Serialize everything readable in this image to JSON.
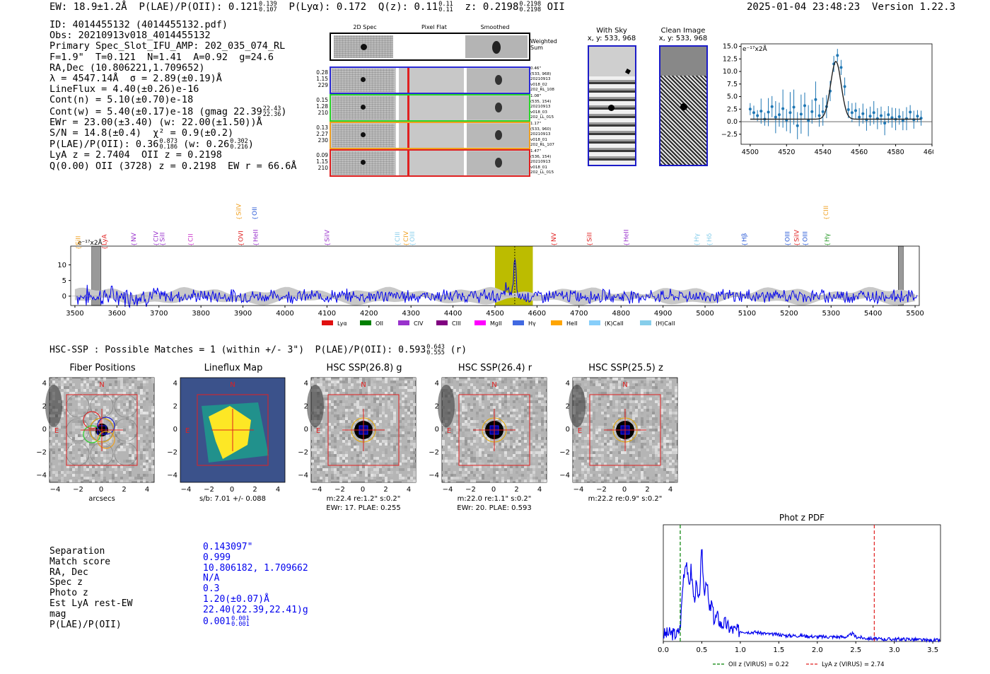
{
  "header": {
    "ew": "EW: 18.9±1.2Å",
    "plae_label": "P(LAE)/P(OII): 0.121",
    "plae_hi": "0.139",
    "plae_lo": "0.107",
    "plya": "P(Lyα): 0.172",
    "qz": "Q(z): 0.11",
    "qz_hi": "0.11",
    "qz_lo": "0.11",
    "z": "z: 0.2198",
    "z_hi": "0.2198",
    "z_lo": "0.2198",
    "z_line": "OII",
    "datetime": "2025-01-04 23:48:23",
    "version": "Version 1.22.3"
  },
  "info": {
    "id": "ID: 4014455132 (4014455132.pdf)",
    "obs": "Obs: 20210913v018_4014455132",
    "primary": "Primary Spec_Slot_IFU_AMP: 202_035_074_RL",
    "fit": "F=1.9\"  T=0.121  N=1.41  A=0.92  g=24.6",
    "radec": "RA,Dec (10.806221,1.709652)",
    "lambda": "λ = 4547.14Å  σ = 2.89(±0.19)Å",
    "lineflux": "LineFlux = 4.40(±0.26)e-16",
    "contn": "Cont(n) = 5.10(±0.70)e-18",
    "contw": "Cont(w) = 5.40(±0.17)e-18 (gmag 22.39",
    "contw_hi": "22.43",
    "contw_lo": "22.36",
    "ewr": "EWr = 23.00(±3.40) (w: 22.00(±1.50))Å",
    "sn": "S/N = 14.8(±0.4)  χ² = 0.9(±0.2)",
    "plae2": "P(LAE)/P(OII): 0.36",
    "plae2_hi": "0.873",
    "plae2_lo": "0.186",
    "plae2_w": "(w: 0.26",
    "plae2_w_hi": "0.302",
    "plae2_w_lo": "0.216",
    "lyaz": "LyA z = 2.7404  OII z = 0.2198",
    "q": "Q(0.00) OII (3728) z = 0.2198  EW r = 66.6Å"
  },
  "cutouts": {
    "col_2d": "2D Spec",
    "col_flat": "Pixel Flat",
    "col_smooth": "Smoothed",
    "weighted": "Weighted Sum",
    "rows": [
      {
        "n1": "0.28",
        "n2": "1.15",
        "n3": "229",
        "d": "0.46\"",
        "xy": "(533, 968)",
        "date": "20210913",
        "obs": "v018_02",
        "amp": "202_RL_108",
        "color": "#2a2ad6"
      },
      {
        "n1": "0.15",
        "n2": "1.28",
        "n3": "210",
        "d": "1.08\"",
        "xy": "(535, 154)",
        "date": "20210913",
        "obs": "v018_03",
        "amp": "202_LL_015",
        "color": "#2bd62b"
      },
      {
        "n1": "0.13",
        "n2": "2.27",
        "n3": "230",
        "d": "1.17\"",
        "xy": "(533, 960)",
        "date": "20210913",
        "obs": "v018_01",
        "amp": "202_RL_107",
        "color": "#f0a020"
      },
      {
        "n1": "0.09",
        "n2": "1.15",
        "n3": "210",
        "d": "1.47\"",
        "xy": "(536, 154)",
        "date": "20210913",
        "obs": "v018_01",
        "amp": "202_LL_015",
        "color": "#e02020"
      }
    ],
    "withsky_title": "With Sky",
    "withsky_xy": "x, y: 533, 968",
    "clean_title": "Clean Image",
    "clean_xy": "x, y: 533, 968"
  },
  "chart_data": [
    {
      "type": "line",
      "name": "line-fit",
      "ylabel_unit": "e⁻¹⁷x2Å",
      "xlim": [
        4495,
        4600
      ],
      "ylim": [
        -4.5,
        15.5
      ],
      "xticks": [
        4500,
        4520,
        4540,
        4560,
        4580,
        4600
      ],
      "yticks": [
        -2.5,
        0.0,
        2.5,
        5.0,
        7.5,
        10.0,
        12.5,
        15.0
      ],
      "ytick_labels": [
        "−2.5",
        "0.0",
        "2.5",
        "5.0",
        "7.5",
        "10.0",
        "12.5",
        "15.0"
      ],
      "fit": {
        "center": 4547.14,
        "sigma": 2.89,
        "amp": 11.5,
        "cont": 0.5
      },
      "points": {
        "x": [
          4500,
          4502,
          4504,
          4506,
          4508,
          4510,
          4512,
          4514,
          4516,
          4518,
          4520,
          4522,
          4524,
          4526,
          4528,
          4530,
          4532,
          4534,
          4536,
          4538,
          4540,
          4542,
          4544,
          4546,
          4548,
          4550,
          4552,
          4554,
          4556,
          4558,
          4560,
          4562,
          4564,
          4566,
          4568,
          4570,
          4572,
          4574,
          4576,
          4578,
          4580,
          4582,
          4584,
          4586,
          4588,
          4590,
          4592,
          4594
        ],
        "y": [
          2.5,
          1.8,
          1.2,
          2.1,
          0.5,
          1.9,
          3.0,
          0.9,
          1.4,
          2.6,
          0.3,
          1.8,
          2.9,
          -0.8,
          1.5,
          3.2,
          0.2,
          2.0,
          4.4,
          1.2,
          2.0,
          3.0,
          6.1,
          11.5,
          13.2,
          10.8,
          7.0,
          2.4,
          1.8,
          2.2,
          0.9,
          1.6,
          0.4,
          1.1,
          1.8,
          0.6,
          1.2,
          -0.3,
          1.4,
          0.8,
          0.5,
          1.0,
          0.2,
          0.6,
          1.9,
          0.4,
          1.1,
          0.7
        ],
        "err": [
          1.2,
          1.4,
          1.1,
          2.5,
          1.3,
          2.8,
          2.1,
          3.2,
          2.4,
          3.8,
          2.2,
          4.1,
          3.5,
          2.7,
          3.9,
          2.6,
          3.1,
          2.4,
          3.6,
          2.2,
          2.8,
          2.3,
          2.0,
          1.6,
          1.3,
          1.5,
          1.8,
          1.7,
          1.9,
          1.6,
          1.8,
          2.0,
          2.2,
          1.9,
          2.3,
          2.1,
          1.8,
          2.4,
          1.7,
          2.0,
          2.2,
          1.6,
          1.9,
          2.3,
          1.4,
          1.8,
          1.2,
          1.5
        ]
      }
    },
    {
      "type": "line",
      "name": "full-spectrum",
      "ylabel_unit": "e⁻¹⁷x2Å",
      "xlim": [
        3490,
        5510
      ],
      "ylim": [
        -3,
        16
      ],
      "xticks": [
        3500,
        3600,
        3700,
        3800,
        3900,
        4000,
        4100,
        4200,
        4300,
        4400,
        4500,
        4600,
        4700,
        4800,
        4900,
        5000,
        5100,
        5200,
        5300,
        5400,
        5500
      ],
      "yticks": [
        0,
        5,
        10
      ],
      "highlight": [
        4500,
        4590
      ],
      "marker": 4547,
      "grey_bands": [
        [
          3540,
          3562
        ],
        [
          5460,
          5472
        ]
      ],
      "line_labels": [
        {
          "label": "SiII",
          "x": 3508,
          "tier": 0,
          "color": "#f0a020"
        },
        {
          "label": "LyA",
          "x": 3570,
          "tier": 0,
          "color": "#e02020"
        },
        {
          "label": "NV",
          "x": 3640,
          "tier": 1,
          "color": "#9932cc"
        },
        {
          "label": "CIV",
          "x": 3693,
          "tier": 1,
          "color": "#9932cc"
        },
        {
          "label": "SiII",
          "x": 3708,
          "tier": 1,
          "color": "#9932cc"
        },
        {
          "label": "CII",
          "x": 3775,
          "tier": 1,
          "color": "#cc33cc"
        },
        {
          "label": "SiIV",
          "x": 3890,
          "tier": 3,
          "color": "#f0a020"
        },
        {
          "label": "OII",
          "x": 3928,
          "tier": 3,
          "color": "#2a5ad6"
        },
        {
          "label": "OVI",
          "x": 3895,
          "tier": 1,
          "color": "#e02020"
        },
        {
          "label": "HeII",
          "x": 3930,
          "tier": 1,
          "color": "#9932cc"
        },
        {
          "label": "SiIV",
          "x": 4100,
          "tier": 1,
          "color": "#9932cc"
        },
        {
          "label": "CIII",
          "x": 4268,
          "tier": 1,
          "color": "#87ceeb"
        },
        {
          "label": "CIV",
          "x": 4288,
          "tier": 1,
          "color": "#f0a020"
        },
        {
          "label": "OIII",
          "x": 4303,
          "tier": 1,
          "color": "#87ceeb"
        },
        {
          "label": "NV",
          "x": 4640,
          "tier": 1,
          "color": "#e02020"
        },
        {
          "label": "SiII",
          "x": 4725,
          "tier": 1,
          "color": "#e02020"
        },
        {
          "label": "HeII",
          "x": 4812,
          "tier": 1,
          "color": "#9932cc"
        },
        {
          "label": "Hγ",
          "x": 4980,
          "tier": 1,
          "color": "#87ceeb"
        },
        {
          "label": "Hδ",
          "x": 5010,
          "tier": 1,
          "color": "#87ceeb"
        },
        {
          "label": "Hβ",
          "x": 5093,
          "tier": 1,
          "color": "#2a5ad6"
        },
        {
          "label": "OIII",
          "x": 5196,
          "tier": 1,
          "color": "#2a5ad6"
        },
        {
          "label": "SiIV",
          "x": 5218,
          "tier": 1,
          "color": "#e02020"
        },
        {
          "label": "OIII",
          "x": 5238,
          "tier": 1,
          "color": "#2a5ad6"
        },
        {
          "label": "CIII",
          "x": 5288,
          "tier": 3,
          "color": "#f0a020"
        },
        {
          "label": "Hγ",
          "x": 5290,
          "tier": 1,
          "color": "#2a9a2a"
        }
      ],
      "legend": [
        {
          "label": "Lyα",
          "color": "#e01010"
        },
        {
          "label": "OII",
          "color": "#008000"
        },
        {
          "label": "CIV",
          "color": "#9932cc"
        },
        {
          "label": "CIII",
          "color": "#800080"
        },
        {
          "label": "MgII",
          "color": "#ff00ff"
        },
        {
          "label": "Hγ",
          "color": "#4169e1"
        },
        {
          "label": "HeII",
          "color": "#ffa500"
        },
        {
          "label": "(K)CaII",
          "color": "#87cefa"
        },
        {
          "label": "(H)CaII",
          "color": "#87ceeb"
        }
      ]
    },
    {
      "type": "line",
      "name": "photz-pdf",
      "title": "Phot z PDF",
      "xlim": [
        0.0,
        3.6
      ],
      "ylim": [
        0,
        1.0
      ],
      "xticks": [
        0.0,
        0.5,
        1.0,
        1.5,
        2.0,
        2.5,
        3.0,
        3.5
      ],
      "xtick_labels": [
        "0.0",
        "0.5",
        "1.0",
        "1.5",
        "2.0",
        "2.5",
        "3.0",
        "3.5"
      ],
      "vlines": [
        {
          "x": 0.22,
          "color": "#008000",
          "label": "OII z (VIRUS) = 0.22"
        },
        {
          "x": 2.74,
          "color": "#e02020",
          "label": "LyA z (VIRUS) = 2.74"
        }
      ],
      "curve": {
        "x": [
          0.0,
          0.1,
          0.18,
          0.22,
          0.26,
          0.3,
          0.33,
          0.36,
          0.4,
          0.43,
          0.46,
          0.5,
          0.53,
          0.56,
          0.6,
          0.63,
          0.66,
          0.7,
          0.75,
          0.8,
          0.85,
          0.9,
          1.0,
          1.1,
          1.2,
          1.3,
          1.4,
          1.5,
          1.6,
          1.8,
          2.0,
          2.2,
          2.4,
          2.45,
          2.5,
          2.6,
          2.8,
          3.0,
          3.2,
          3.4,
          3.6
        ],
        "y": [
          0.06,
          0.07,
          0.06,
          0.12,
          0.55,
          0.72,
          0.45,
          0.62,
          0.35,
          0.5,
          0.3,
          0.78,
          0.42,
          0.55,
          0.25,
          0.33,
          0.18,
          0.22,
          0.14,
          0.16,
          0.12,
          0.1,
          0.09,
          0.08,
          0.08,
          0.07,
          0.06,
          0.06,
          0.05,
          0.05,
          0.04,
          0.04,
          0.04,
          0.07,
          0.04,
          0.03,
          0.02,
          0.02,
          0.02,
          0.01,
          0.01
        ]
      }
    }
  ],
  "hsc": {
    "summary": "HSC-SSP : Possible Matches = 1 (within +/- 3\")  P(LAE)/P(OII): 0.593",
    "summary_hi": "0.643",
    "summary_lo": "0.555",
    "summary_band": "(r)",
    "panels": [
      {
        "title": "Fiber Positions",
        "cap1": "arcsecs",
        "cap2": ""
      },
      {
        "title": "Lineflux Map",
        "cap1": "s/b: 7.01 +/- 0.088",
        "cap2": ""
      },
      {
        "title": "HSC SSP(26.8) g",
        "cap1": "m:22.4  re:1.2\"  s:0.2\"",
        "cap2": "EWr: 17. PLAE: 0.255"
      },
      {
        "title": "HSC SSP(26.4) r",
        "cap1": "m:22.0  re:1.1\"  s:0.2\"",
        "cap2": "EWr: 20. PLAE: 0.593"
      },
      {
        "title": "HSC SSP(25.5) z",
        "cap1": "m:22.2  re:0.9\"  s:0.2\"",
        "cap2": ""
      }
    ],
    "ticks": [
      "4",
      "2",
      "0",
      "−2",
      "−4"
    ],
    "xticks": [
      "−4",
      "−2",
      "0",
      "2",
      "4"
    ],
    "north": "N",
    "east": "E"
  },
  "match": {
    "labels": [
      "Separation",
      "Match score",
      "RA, Dec",
      "Spec z",
      "Photo z",
      "Est LyA rest-EW",
      "mag",
      "P(LAE)/P(OII)"
    ],
    "values": [
      "0.143097\"",
      "0.999",
      "10.806182, 1.709662",
      "N/A",
      "0.3",
      "1.20(±0.07)Å",
      "22.40(22.39,22.41)g",
      "0.001"
    ],
    "plae_hi": "0.001",
    "plae_lo": "0.001"
  }
}
